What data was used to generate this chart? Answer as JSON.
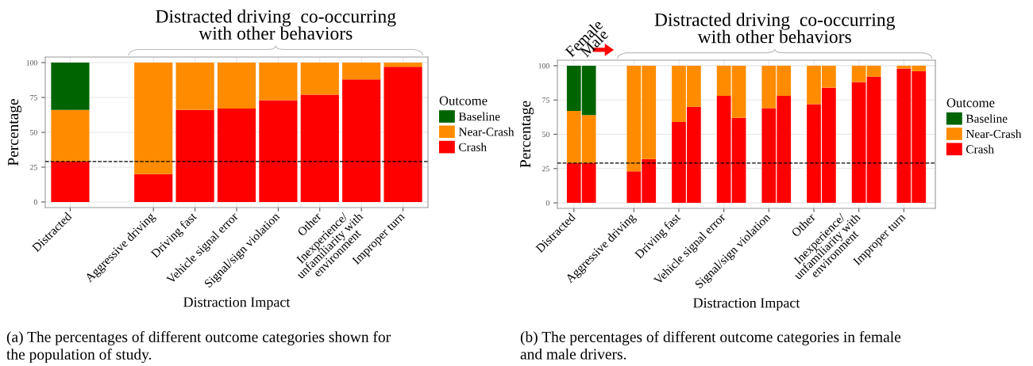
{
  "chart_data": [
    {
      "type": "bar",
      "title": "Distracted driving  co-occurring\nwith other behaviors",
      "xlabel": "Distraction Impact",
      "ylabel": "Percentage",
      "legend_title": "Outcome",
      "categories": [
        "Distracted",
        null,
        "Aggressive driving",
        "Driving fast",
        "Vehicle signal error",
        "Signal/sign violation",
        "Other",
        "Inexperience/\nunfamiliarity with\nenvironment",
        "Improper turn"
      ],
      "series": [
        {
          "name": "Crash",
          "color": "#ff0000",
          "values": [
            29,
            null,
            20,
            66,
            67,
            73,
            77,
            88,
            97
          ]
        },
        {
          "name": "Near-Crash",
          "color": "#ff8c00",
          "values": [
            37,
            null,
            80,
            34,
            33,
            27,
            23,
            12,
            3
          ]
        },
        {
          "name": "Baseline",
          "color": "#006400",
          "values": [
            34,
            null,
            null,
            null,
            null,
            null,
            null,
            null,
            null
          ]
        }
      ],
      "stacked": true,
      "ylim": [
        -4,
        104
      ],
      "yticks": [
        0,
        25,
        50,
        75,
        100
      ],
      "grid": true,
      "legend": "right",
      "ref_lines": [
        {
          "axis": "y",
          "value": 29,
          "color": "#000000",
          "line_style": "dashed"
        }
      ],
      "annotations": [
        "(a) The percentages of different outcome categories shown for\nthe population of study."
      ]
    },
    {
      "type": "bar",
      "title": "Distracted driving  co-occurring\nwith other behaviors",
      "xlabel": "Distraction Impact",
      "ylabel": "Percentage",
      "legend_title": "Outcome",
      "categories": [
        "Distracted",
        null,
        null,
        null,
        "Aggressive driving",
        null,
        null,
        "Driving fast",
        null,
        null,
        "Vehicle signal error",
        null,
        null,
        "Signal/sign violation",
        null,
        null,
        "Other",
        null,
        null,
        "Inexperience/\nunfamiliarity with\nenvironment",
        null,
        null,
        "Improper turn",
        null
      ],
      "series": [
        {
          "name": "Crash",
          "color": "#ff0000",
          "values": [
            29,
            29,
            null,
            null,
            23,
            32,
            null,
            59,
            70,
            null,
            78,
            62,
            null,
            69,
            78,
            null,
            72,
            84,
            null,
            88,
            92,
            null,
            98,
            96
          ]
        },
        {
          "name": "Near-Crash",
          "color": "#ff8c00",
          "values": [
            38,
            35,
            null,
            null,
            77,
            68,
            null,
            41,
            30,
            null,
            22,
            38,
            null,
            31,
            22,
            null,
            28,
            16,
            null,
            12,
            8,
            null,
            2,
            4
          ]
        },
        {
          "name": "Baseline",
          "color": "#006400",
          "values": [
            33,
            36,
            null,
            null,
            null,
            null,
            null,
            null,
            null,
            null,
            null,
            null,
            null,
            null,
            null,
            null,
            null,
            null,
            null,
            null,
            null,
            null,
            null,
            null
          ]
        }
      ],
      "stacked": true,
      "ylim": [
        -4,
        104
      ],
      "yticks": [
        0,
        25,
        50,
        75,
        100
      ],
      "grid": true,
      "legend": "right",
      "ref_lines": [
        {
          "axis": "y",
          "value": 29,
          "color": "#000000",
          "line_style": "dashed"
        }
      ],
      "annotations": [
        "Female",
        "Male",
        "(b) The percentages of different outcome categories in female\nand male drivers."
      ]
    }
  ]
}
